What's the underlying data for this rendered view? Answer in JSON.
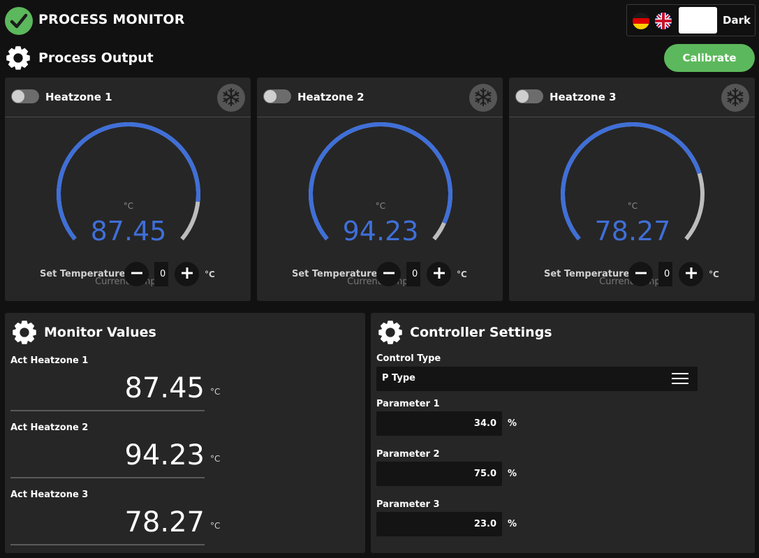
{
  "header": {
    "title": "PROCESS MONITOR",
    "theme_label": "Dark",
    "languages": [
      "de",
      "en"
    ]
  },
  "process_output": {
    "title": "Process Output",
    "calibrate_label": "Calibrate"
  },
  "heatzones": [
    {
      "name": "Heatzone 1",
      "unit": "°C",
      "value": "87.45",
      "gauge_label": "Current Temp..",
      "gauge_fraction": 0.87,
      "set_label": "Set Temperature.",
      "set_value": "0",
      "set_unit": "°C",
      "enabled": false
    },
    {
      "name": "Heatzone 2",
      "unit": "°C",
      "value": "94.23",
      "gauge_label": "Current Temp..",
      "gauge_fraction": 0.94,
      "set_label": "Set Temperature.",
      "set_value": "0",
      "set_unit": "°C",
      "enabled": false
    },
    {
      "name": "Heatzone 3",
      "unit": "°C",
      "value": "78.27",
      "gauge_label": "Current Temp..",
      "gauge_fraction": 0.78,
      "set_label": "Set Temperature.",
      "set_value": "0",
      "set_unit": "°C",
      "enabled": false
    }
  ],
  "monitor": {
    "title": "Monitor Values",
    "items": [
      {
        "label": "Act Heatzone 1",
        "value": "87.45",
        "unit": "°C"
      },
      {
        "label": "Act Heatzone 2",
        "value": "94.23",
        "unit": "°C"
      },
      {
        "label": "Act Heatzone 3",
        "value": "78.27",
        "unit": "°C"
      }
    ]
  },
  "controller": {
    "title": "Controller Settings",
    "control_type_label": "Control Type",
    "control_type_value": "P Type",
    "params": [
      {
        "label": "Parameter 1",
        "value": "34.0",
        "unit": "%"
      },
      {
        "label": "Parameter 2",
        "value": "75.0",
        "unit": "%"
      },
      {
        "label": "Parameter 3",
        "value": "23.0",
        "unit": "%"
      }
    ]
  },
  "colors": {
    "accent_green": "#5cb85c",
    "gauge_blue": "#3f6fd8",
    "gauge_track": "#bdbdbd",
    "card_bg": "#262626",
    "page_bg": "#111111"
  },
  "icons": {
    "status": "check-circle-icon",
    "section": "gear-icon",
    "cooling": "snowflake-icon",
    "menu": "menu-icon"
  }
}
